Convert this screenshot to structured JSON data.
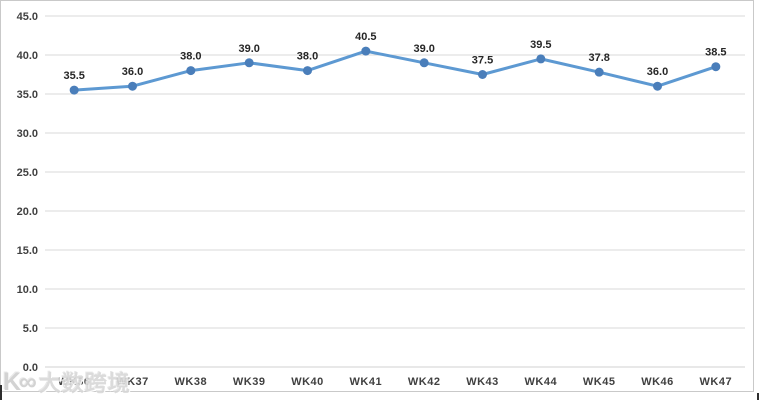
{
  "chart_data": {
    "type": "line",
    "title": "",
    "xlabel": "",
    "ylabel": "",
    "categories": [
      "WK36",
      "WK37",
      "WK38",
      "WK39",
      "WK40",
      "WK41",
      "WK42",
      "WK43",
      "WK44",
      "WK45",
      "WK46",
      "WK47"
    ],
    "values": [
      35.5,
      36.0,
      38.0,
      39.0,
      38.0,
      40.5,
      39.0,
      37.5,
      39.5,
      37.8,
      36.0,
      38.5
    ],
    "point_labels": [
      "35.5",
      "36.0",
      "38.0",
      "39.0",
      "38.0",
      "40.5",
      "39.0",
      "37.5",
      "39.5",
      "37.8",
      "36.0",
      "38.5"
    ],
    "ylim": [
      0,
      45
    ],
    "ytick_step": 5,
    "ytick_labels": [
      "0.0",
      "5.0",
      "10.0",
      "15.0",
      "20.0",
      "25.0",
      "30.0",
      "35.0",
      "40.0",
      "45.0"
    ],
    "grid": true,
    "legend": "none",
    "colors": {
      "line": "#5d99d2",
      "marker": "#4a7eba",
      "data_label": "#262626",
      "axis_label": "#404040",
      "gridline": "#d9d9d9",
      "axis_line": "#d0d0d0",
      "frame_border": "#c9c9c9"
    }
  },
  "watermark": {
    "logo_text": "K∞",
    "brand_text": "大数跨境"
  }
}
